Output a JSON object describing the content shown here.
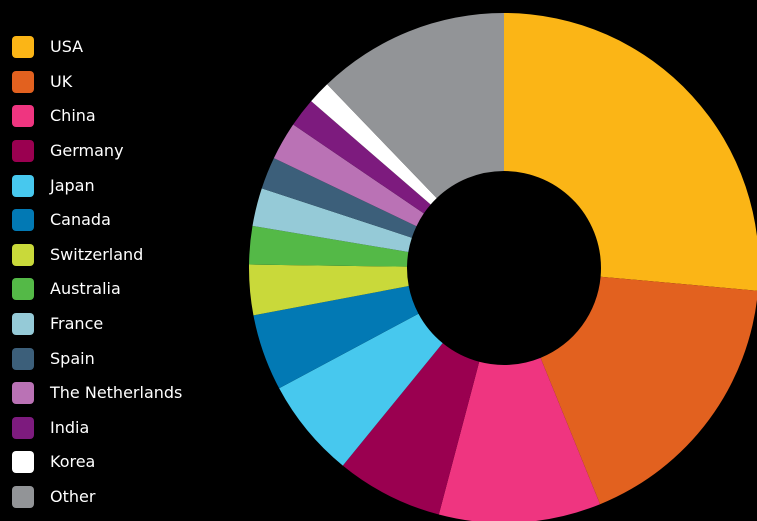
{
  "chart_data": {
    "type": "pie",
    "variant": "donut",
    "title": "",
    "legend_position": "left",
    "categories": [
      "USA",
      "UK",
      "China",
      "Germany",
      "Japan",
      "Canada",
      "Switzerland",
      "Australia",
      "France",
      "Spain",
      "The Netherlands",
      "India",
      "Korea",
      "Other"
    ],
    "values": [
      27.3,
      18.0,
      10.6,
      7.0,
      6.5,
      5.0,
      3.3,
      2.5,
      2.5,
      2.1,
      2.5,
      1.9,
      1.5,
      12.6
    ],
    "colors": [
      "#FBB516",
      "#E2611F",
      "#EF3580",
      "#9A0050",
      "#47C8EE",
      "#0279B4",
      "#C9D93A",
      "#54B947",
      "#95CAD7",
      "#3C5F7A",
      "#BA72B5",
      "#7D1B7E",
      "#FFFFFF",
      "#929497"
    ]
  }
}
